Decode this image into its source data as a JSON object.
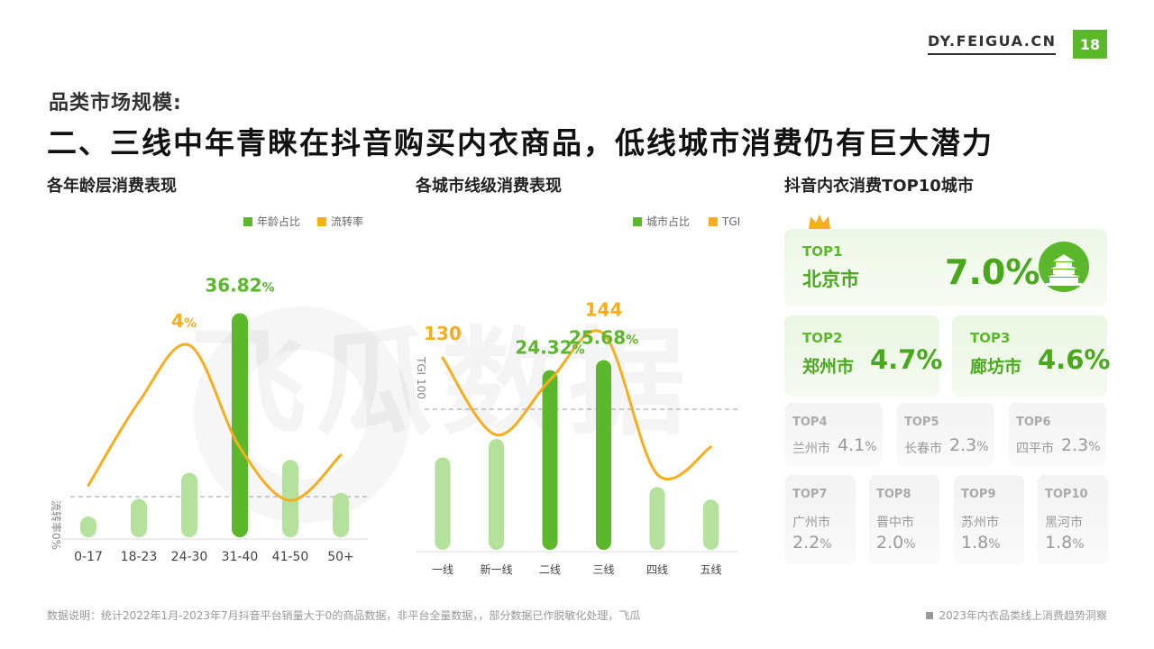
{
  "header": {
    "brand": "DY.FEIGUA.CN",
    "page_number": "18",
    "subtitle": "品类市场规模:",
    "title": "二、三线中年青睐在抖音购买内衣商品，低线城市消费仍有巨大潜力"
  },
  "watermark": "飞瓜数据",
  "colors": {
    "green": "#5bb82b",
    "green_light": "#b4e29c",
    "orange": "#f5ae1e",
    "dash": "#999999"
  },
  "chart_data": [
    {
      "type": "bar",
      "title": "各年龄层消费表现",
      "categories": [
        "0-17",
        "18-23",
        "24-30",
        "31-40",
        "41-50",
        "50+"
      ],
      "series": [
        {
          "name": "年龄占比",
          "kind": "bar",
          "values": [
            3.4,
            6.3,
            10.6,
            36.82,
            12.7,
            7.3
          ],
          "highlight_index": 3,
          "highlight_label": "36.82"
        },
        {
          "name": "流转率",
          "kind": "line",
          "values": [
            0.3,
            2.5,
            4,
            1.3,
            -0.1,
            1.1
          ],
          "peak_label": "4"
        }
      ],
      "reference_line": {
        "label": "流转率0%",
        "value": 0
      },
      "legend_position": "top-right"
    },
    {
      "type": "bar",
      "title": "各城市线级消费表现",
      "categories": [
        "一线",
        "新一线",
        "二线",
        "三线",
        "四线",
        "五线"
      ],
      "series": [
        {
          "name": "城市占比",
          "kind": "bar",
          "values": [
            12.5,
            15.0,
            24.32,
            25.68,
            8.5,
            6.8
          ],
          "highlight_labels": {
            "2": "24.32",
            "3": "25.68"
          }
        },
        {
          "name": "TGI",
          "kind": "line",
          "values": [
            130,
            85,
            117,
            144,
            62,
            78
          ],
          "labels": {
            "0": "130",
            "3": "144"
          }
        }
      ],
      "reference_line": {
        "label": "TGI 100",
        "value": 100
      },
      "legend_position": "top-right"
    }
  ],
  "top10": {
    "title": "抖音内衣消费TOP10城市",
    "unit": "%",
    "items": [
      {
        "rank": "TOP1",
        "city": "北京市",
        "value": "7.0"
      },
      {
        "rank": "TOP2",
        "city": "郑州市",
        "value": "4.7"
      },
      {
        "rank": "TOP3",
        "city": "廊坊市",
        "value": "4.6"
      },
      {
        "rank": "TOP4",
        "city": "兰州市",
        "value": "4.1"
      },
      {
        "rank": "TOP5",
        "city": "长春市",
        "value": "2.3"
      },
      {
        "rank": "TOP6",
        "city": "四平市",
        "value": "2.3"
      },
      {
        "rank": "TOP7",
        "city": "广州市",
        "value": "2.2"
      },
      {
        "rank": "TOP8",
        "city": "晋中市",
        "value": "2.0"
      },
      {
        "rank": "TOP9",
        "city": "苏州市",
        "value": "1.8"
      },
      {
        "rank": "TOP10",
        "city": "黑河市",
        "value": "1.8"
      }
    ]
  },
  "footer": {
    "note": "数据说明：统计2022年1月-2023年7月抖音平台销量大于0的商品数据，非平台全量数据，，部分数据已作脱敏化处理，飞瓜",
    "right": "2023年内衣品类线上消费趋势洞察"
  }
}
